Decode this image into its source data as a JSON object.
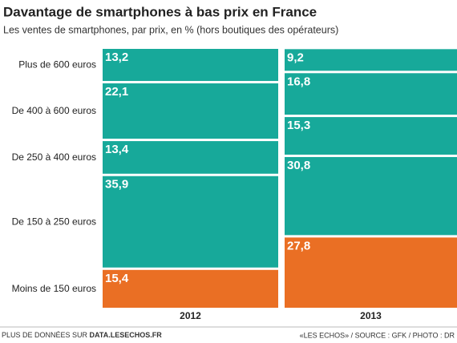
{
  "chart_data": {
    "type": "stacked-column",
    "title": "Davantage de smartphones à bas prix en France",
    "subtitle": "Les ventes de smartphones, par prix, en % (hors boutiques des opérateurs)",
    "categories": [
      "2012",
      "2013"
    ],
    "ylim": [
      0,
      100
    ],
    "series": [
      {
        "name": "Moins de 150 euros",
        "color": "#ea6f24",
        "values": [
          15.4,
          27.8
        ],
        "value_labels": [
          "15,4",
          "27,8"
        ]
      },
      {
        "name": "De 150 à 250 euros",
        "color": "#17a99a",
        "values": [
          35.9,
          30.8
        ],
        "value_labels": [
          "35,9",
          "30,8"
        ]
      },
      {
        "name": "De 250 à 400 euros",
        "color": "#17a99a",
        "values": [
          13.4,
          15.3
        ],
        "value_labels": [
          "13,4",
          "15,3"
        ]
      },
      {
        "name": "De 400 à 600 euros",
        "color": "#17a99a",
        "values": [
          22.1,
          16.8
        ],
        "value_labels": [
          "22,1",
          "16,8"
        ]
      },
      {
        "name": "Plus de 600 euros",
        "color": "#17a99a",
        "values": [
          13.2,
          9.2
        ],
        "value_labels": [
          "13,2",
          "9,2"
        ]
      }
    ],
    "footer_left": "PLUS DE DONNÉES SUR",
    "footer_link": "DATA.LESECHOS.FR",
    "footer_right": "«LES ECHOS» / SOURCE : GFK / PHOTO : DR"
  }
}
